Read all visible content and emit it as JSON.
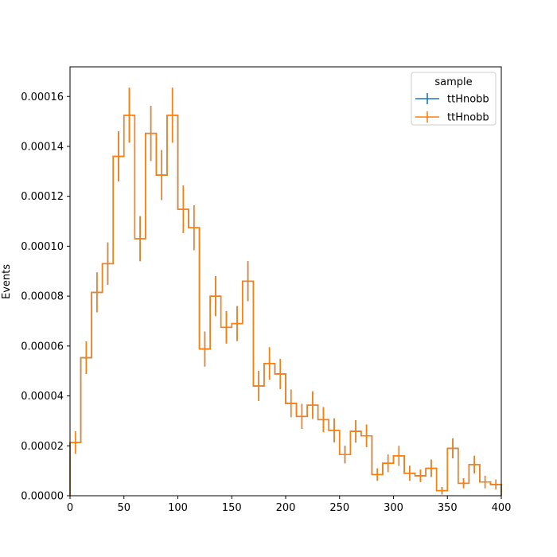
{
  "chart_data": {
    "type": "step-histogram",
    "xlabel": "",
    "ylabel": "Events",
    "xlim": [
      0,
      400
    ],
    "ylim": [
      0,
      0.00017188
    ],
    "xticks": [
      0,
      50,
      100,
      150,
      200,
      250,
      300,
      350,
      400
    ],
    "xtick_labels": [
      "0",
      "50",
      "100",
      "150",
      "200",
      "250",
      "300",
      "350",
      "400"
    ],
    "yticks": [
      0,
      2e-05,
      4e-05,
      6e-05,
      8e-05,
      0.0001,
      0.00012,
      0.00014,
      0.00016
    ],
    "ytick_labels": [
      "0.00000",
      "0.00002",
      "0.00004",
      "0.00006",
      "0.00008",
      "0.00010",
      "0.00012",
      "0.00014",
      "0.00016"
    ],
    "grid": false,
    "legend": {
      "title": "sample",
      "placement": "upper right"
    },
    "bin_edges": [
      0,
      10,
      20,
      30,
      40,
      50,
      60,
      70,
      80,
      90,
      100,
      110,
      120,
      130,
      140,
      150,
      160,
      170,
      180,
      190,
      200,
      210,
      220,
      230,
      240,
      250,
      260,
      270,
      280,
      290,
      300,
      310,
      320,
      330,
      340,
      350,
      360,
      370,
      380,
      390,
      400
    ],
    "series": [
      {
        "name": "ttHnobb",
        "color": "#1f77b4",
        "values": [
          2.13e-05,
          5.53e-05,
          8.15e-05,
          9.3e-05,
          0.000136,
          0.0001525,
          0.000103,
          0.0001452,
          0.0001285,
          0.0001525,
          0.0001148,
          0.0001074,
          5.88e-05,
          8e-05,
          6.75e-05,
          6.9e-05,
          8.6e-05,
          4.4e-05,
          5.3e-05,
          4.88e-05,
          3.7e-05,
          3.18e-05,
          3.63e-05,
          3.05e-05,
          2.62e-05,
          1.65e-05,
          2.58e-05,
          2.4e-05,
          8.5e-06,
          1.3e-05,
          1.6e-05,
          9e-06,
          8e-06,
          1.1e-05,
          2e-06,
          1.9e-05,
          5e-06,
          1.25e-05,
          5.5e-06,
          4.5e-06
        ],
        "errors": [
          4.5e-06,
          6.5e-06,
          8e-06,
          8.5e-06,
          1e-05,
          1.1e-05,
          9e-06,
          1.1e-05,
          1e-05,
          1.1e-05,
          9.5e-06,
          9e-06,
          7e-06,
          8e-06,
          6.5e-06,
          7e-06,
          8e-06,
          6e-06,
          6.5e-06,
          6e-06,
          5.5e-06,
          5e-06,
          5.5e-06,
          5e-06,
          4.8e-06,
          3.5e-06,
          4.5e-06,
          4.5e-06,
          2.5e-06,
          3.5e-06,
          4e-06,
          3e-06,
          2.5e-06,
          3.5e-06,
          1.5e-06,
          4e-06,
          2e-06,
          3.5e-06,
          2.5e-06,
          2e-06
        ]
      },
      {
        "name": "ttHnobb",
        "color": "#ff7f0e",
        "values": [
          2.13e-05,
          5.53e-05,
          8.15e-05,
          9.3e-05,
          0.000136,
          0.0001525,
          0.000103,
          0.0001452,
          0.0001285,
          0.0001525,
          0.0001148,
          0.0001074,
          5.88e-05,
          8e-05,
          6.75e-05,
          6.9e-05,
          8.6e-05,
          4.4e-05,
          5.3e-05,
          4.88e-05,
          3.7e-05,
          3.18e-05,
          3.63e-05,
          3.05e-05,
          2.62e-05,
          1.65e-05,
          2.58e-05,
          2.4e-05,
          8.5e-06,
          1.3e-05,
          1.6e-05,
          9e-06,
          8e-06,
          1.1e-05,
          2e-06,
          1.9e-05,
          5e-06,
          1.25e-05,
          5.5e-06,
          4.5e-06
        ],
        "errors": [
          4.5e-06,
          6.5e-06,
          8e-06,
          8.5e-06,
          1e-05,
          1.1e-05,
          9e-06,
          1.1e-05,
          1e-05,
          1.1e-05,
          9.5e-06,
          9e-06,
          7e-06,
          8e-06,
          6.5e-06,
          7e-06,
          8e-06,
          6e-06,
          6.5e-06,
          6e-06,
          5.5e-06,
          5e-06,
          5.5e-06,
          5e-06,
          4.8e-06,
          3.5e-06,
          4.5e-06,
          4.5e-06,
          2.5e-06,
          3.5e-06,
          4e-06,
          3e-06,
          2.5e-06,
          3.5e-06,
          1.5e-06,
          4e-06,
          2e-06,
          3.5e-06,
          2.5e-06,
          2e-06
        ]
      }
    ]
  }
}
